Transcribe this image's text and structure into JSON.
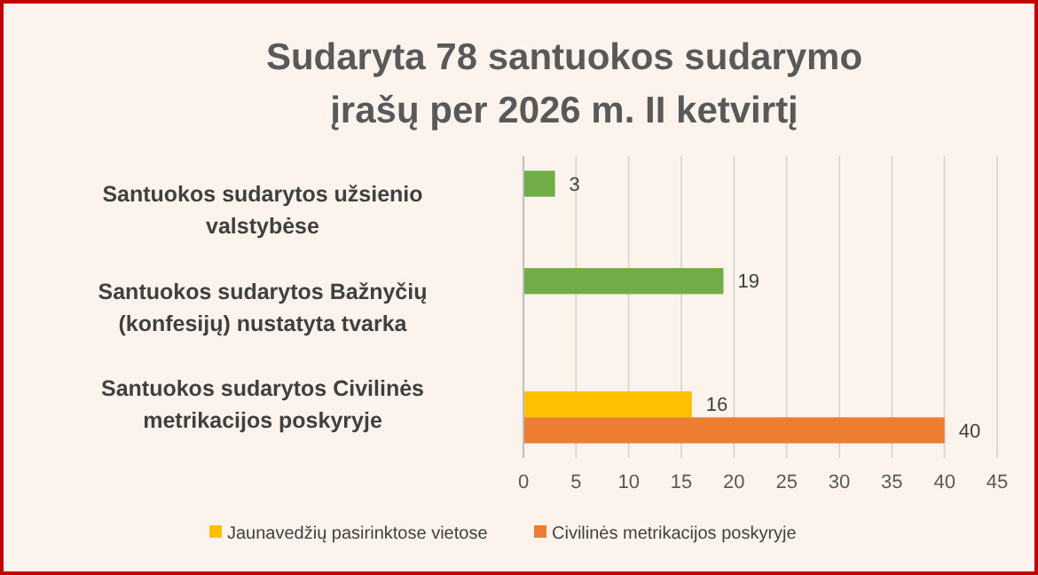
{
  "chart_data": {
    "type": "bar",
    "orientation": "horizontal",
    "title": "Sudaryta 78 santuokos sudarymo įrašų per 2026 m. II ketvirtį",
    "categories": [
      "Santuokos sudarytos užsienio valstybėse",
      "Santuokos sudarytos Bažnyčių (konfesijų) nustatyta tvarka",
      "Santuokos sudarytos Civilinės metrikacijos poskyryje"
    ],
    "series": [
      {
        "color": "#70ad47",
        "values": [
          3,
          19,
          null
        ]
      },
      {
        "name": "Jaunavedžių pasirinktose vietose",
        "color": "#ffc000",
        "values": [
          null,
          null,
          16
        ]
      },
      {
        "name": "Civilinės metrikacijos poskyryje",
        "color": "#ed7d31",
        "values": [
          null,
          null,
          40
        ]
      }
    ],
    "xlim": [
      0,
      45
    ],
    "xticks": [
      0,
      5,
      10,
      15,
      20,
      25,
      30,
      35,
      40,
      45
    ],
    "grid": "x",
    "data_labels": true,
    "legend": "bottom"
  }
}
